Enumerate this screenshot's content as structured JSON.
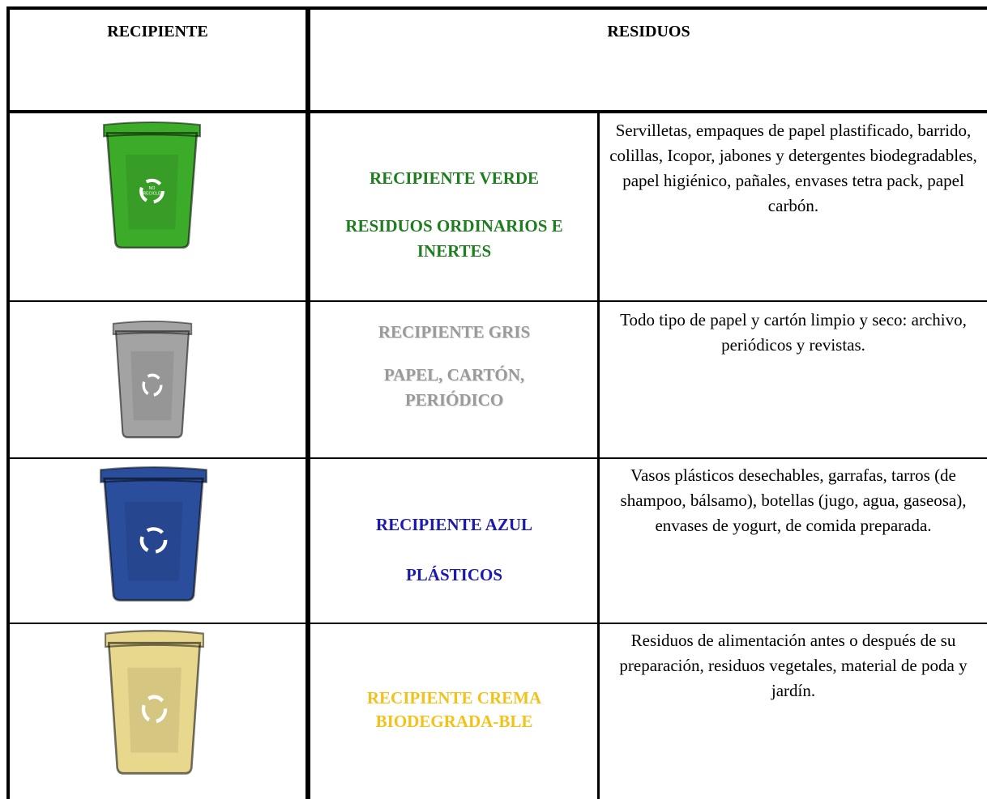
{
  "header": {
    "col1": "RECIPIENTE",
    "col2": "RESIDUOS"
  },
  "rows": [
    {
      "bin_label": [
        "NO",
        "RECICLE"
      ],
      "title": "RECIPIENTE VERDE",
      "category": "RESIDUOS ORDINARIOS E INERTES",
      "description": "Servilletas, empaques de papel plastificado, barrido, colillas, Icopor, jabones y detergentes biodegradables, papel higiénico, pañales, envases tetra pack, papel carbón."
    },
    {
      "title": "RECIPIENTE GRIS",
      "category": "PAPEL, CARTÓN, PERIÓDICO",
      "description": "Todo tipo de papel y cartón limpio y seco: archivo, periódicos y revistas."
    },
    {
      "title": "RECIPIENTE AZUL",
      "category": "PLÁSTICOS",
      "description": "Vasos plásticos desechables, garrafas, tarros (de shampoo, bálsamo), botellas (jugo, agua, gaseosa),  envases de yogurt, de comida preparada."
    },
    {
      "title": "RECIPIENTE CREMA",
      "category": "BIODEGRADA-BLE",
      "description": "Residuos de alimentación antes o después de su preparación, residuos vegetales, material de poda y jardín."
    }
  ]
}
